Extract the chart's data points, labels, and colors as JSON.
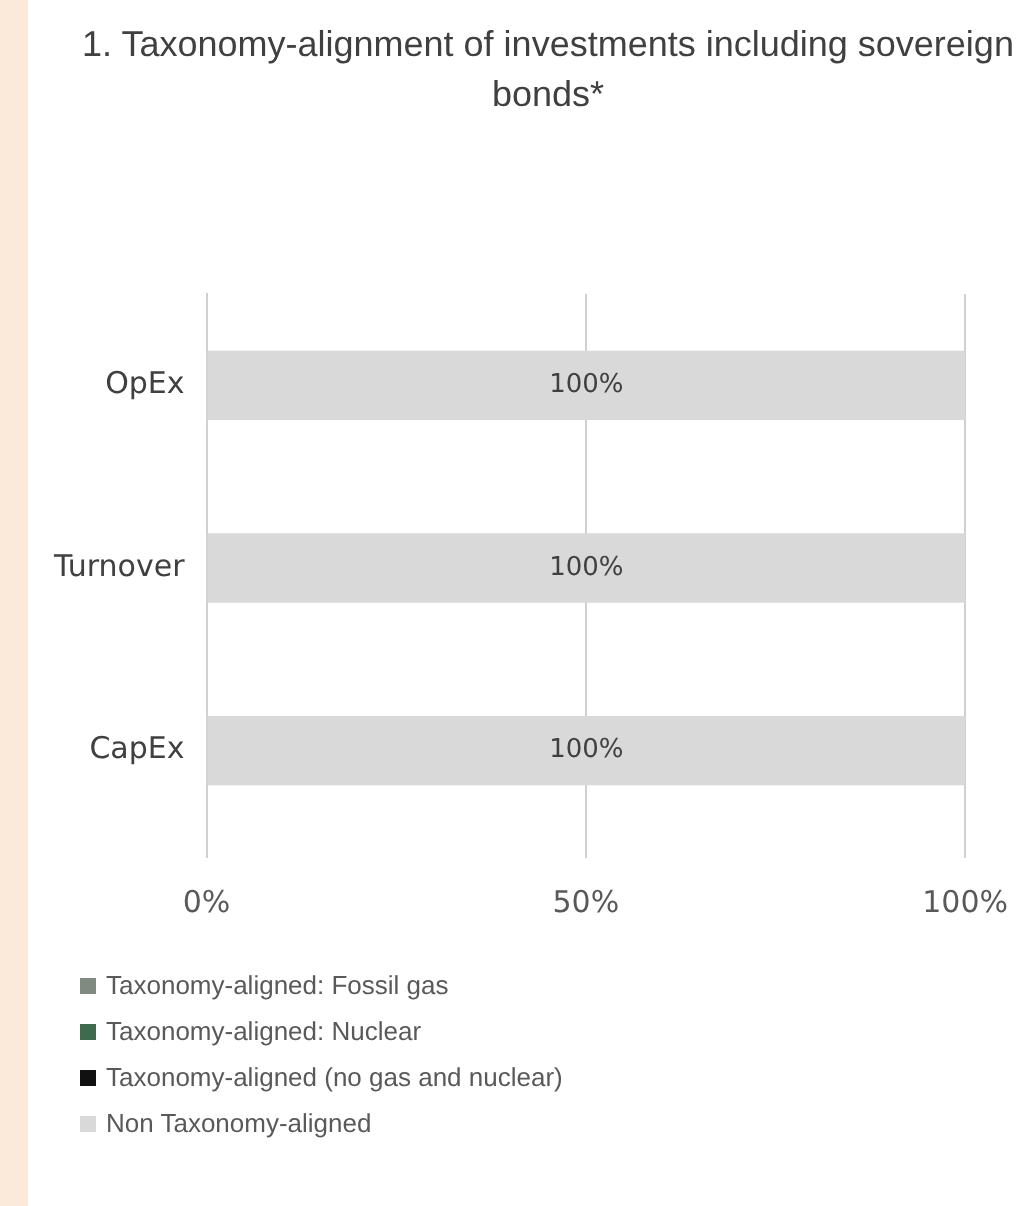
{
  "chart_data": {
    "type": "bar",
    "orientation": "horizontal",
    "stacked": true,
    "title": "1. Taxonomy-alignment of investments including sovereign bonds*",
    "categories": [
      "OpEx",
      "Turnover",
      "CapEx"
    ],
    "series": [
      {
        "name": "Taxonomy-aligned: Fossil gas",
        "color": "#7f8a80",
        "values": [
          0,
          0,
          0
        ]
      },
      {
        "name": "Taxonomy-aligned: Nuclear",
        "color": "#3d6b4c",
        "values": [
          0,
          0,
          0
        ]
      },
      {
        "name": "Taxonomy-aligned (no gas and nuclear)",
        "color": "#111111",
        "values": [
          0,
          0,
          0
        ]
      },
      {
        "name": "Non Taxonomy-aligned",
        "color": "#d9d9d9",
        "values": [
          100,
          100,
          100
        ],
        "value_labels": [
          "100%",
          "100%",
          "100%"
        ]
      }
    ],
    "xlim": [
      0,
      100
    ],
    "xticks": [
      {
        "value": 0,
        "label": "0%"
      },
      {
        "value": 50,
        "label": "50%"
      },
      {
        "value": 100,
        "label": "100%"
      }
    ],
    "grid": "x",
    "legend": "bottom left"
  }
}
